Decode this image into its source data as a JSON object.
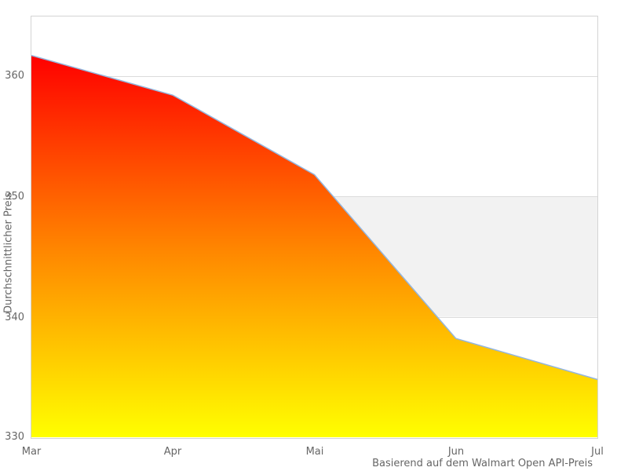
{
  "chart_data": {
    "type": "area",
    "title": "",
    "categories": [
      "Mar",
      "Apr",
      "Mai",
      "Jun",
      "Jul"
    ],
    "values": [
      361.7,
      358.4,
      351.8,
      338.2,
      334.8
    ],
    "series": [
      {
        "name": "Durchschnittlicher Preis",
        "values": [
          361.7,
          358.4,
          351.8,
          338.2,
          334.8
        ]
      }
    ],
    "xlabel": "",
    "ylabel": "Durchschnittlicher Preis",
    "ylim": [
      330,
      365
    ],
    "yticks": [
      330,
      340,
      350,
      360
    ],
    "ytick_labels_top_to_bottom": [
      "360",
      "350",
      "340",
      "330"
    ],
    "caption": "Basierend auf dem Walmart Open API-Preis",
    "grid": "horizontal-only",
    "legend_position": "none",
    "plot_band": {
      "from": 340,
      "to": 350,
      "color": "#f2f2f2"
    },
    "colors": {
      "line": "#94b6de",
      "area_gradient_top": "#ff0000",
      "area_gradient_mid": "#ff8400",
      "area_gradient_bottom": "#ffff00",
      "grid_line": "#dcdcdc",
      "border": "#d4d4d4",
      "text": "#666666",
      "background": "#ffffff"
    }
  }
}
